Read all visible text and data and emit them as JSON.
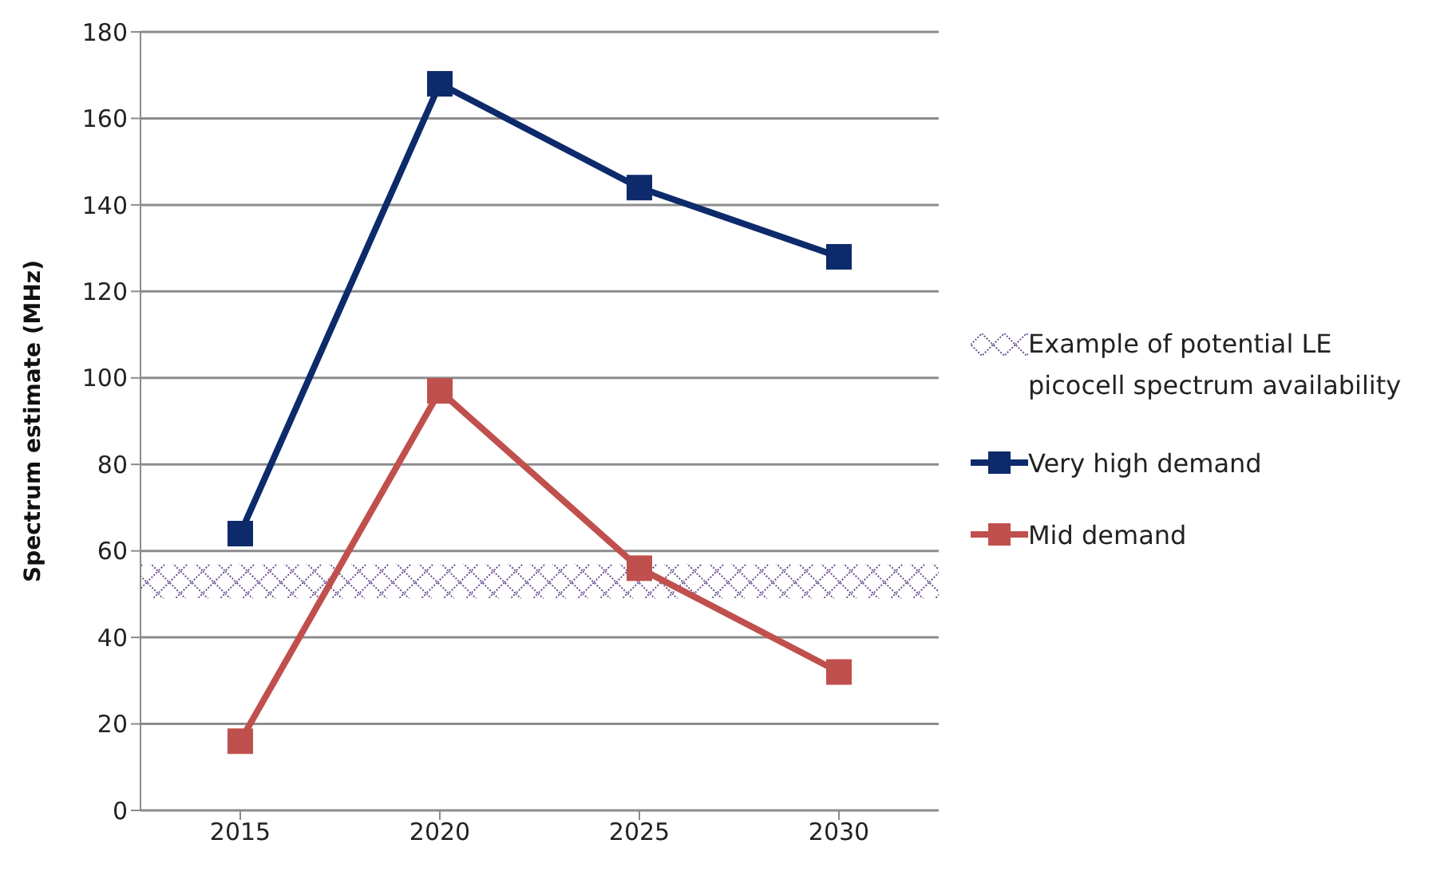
{
  "chart_data": {
    "type": "line",
    "ylabel": "Spectrum estimate  (MHz)",
    "categories": [
      "2015",
      "2020",
      "2025",
      "2030"
    ],
    "series": [
      {
        "name": "Very high demand",
        "color": "#0d2a6b",
        "values": [
          64,
          168,
          144,
          128
        ]
      },
      {
        "name": "Mid demand",
        "color": "#c0504d",
        "values": [
          16,
          97,
          56,
          32
        ]
      }
    ],
    "bands": [
      {
        "axis": "y",
        "from": 49,
        "to": 57,
        "label": "Example of potential LE picocell spectrum availability",
        "color": "#6b4f8f"
      }
    ],
    "ylim": [
      0,
      180
    ],
    "yticks": [
      0,
      20,
      40,
      60,
      80,
      100,
      120,
      140,
      160,
      180
    ],
    "grid": "y",
    "legend": "right",
    "marker": "square",
    "line_style": "solid"
  }
}
